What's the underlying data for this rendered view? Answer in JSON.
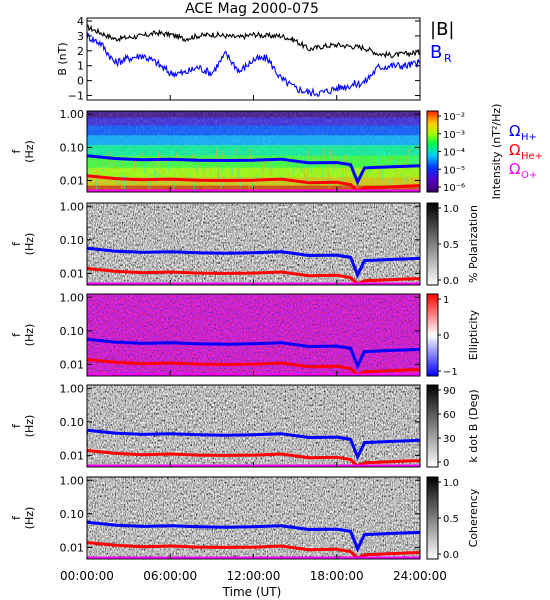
{
  "title": "ACE Mag 2000-075",
  "colors": {
    "total_field": "#000000",
    "radial_field": "#0000ff",
    "h_plus": "#0000ff",
    "he_plus": "#ff0000",
    "o_plus": "#ff00ff"
  },
  "chart_data": [
    {
      "type": "line",
      "panel": "magnetic-field",
      "ylabel": "B (nT)",
      "ylim": [
        -1.3,
        4.2
      ],
      "yticks": [
        "−1",
        "0",
        "1",
        "2",
        "3",
        "4"
      ],
      "x": [
        0,
        1,
        2,
        3,
        4,
        5,
        6,
        7,
        8,
        9,
        10,
        11,
        12,
        13,
        14,
        15,
        16,
        17,
        18,
        19,
        20,
        21,
        22,
        23,
        24
      ],
      "series": [
        {
          "name": "|B|",
          "values": [
            3.6,
            3.2,
            2.8,
            2.9,
            3.0,
            3.2,
            3.1,
            2.8,
            3.0,
            3.1,
            3.0,
            2.9,
            3.1,
            3.0,
            3.0,
            2.7,
            2.1,
            2.3,
            2.4,
            2.3,
            2.2,
            1.8,
            1.7,
            1.8,
            1.9
          ]
        },
        {
          "name": "B",
          "label_subscript": "R",
          "values": [
            3.0,
            2.5,
            1.2,
            1.5,
            1.7,
            1.2,
            0.5,
            0.5,
            0.9,
            0.5,
            1.8,
            0.6,
            1.4,
            1.5,
            0.1,
            -0.5,
            -0.8,
            -0.8,
            -0.5,
            -0.3,
            -0.1,
            0.9,
            1.0,
            1.0,
            1.2
          ]
        }
      ]
    },
    {
      "type": "heatmap",
      "panel": "intensity",
      "ylabel": "f (Hz)",
      "yscale": "log",
      "yticks": [
        "1.00",
        "0.10",
        "0.01"
      ],
      "colorbar_label": "Intensity (nT²/Hz)",
      "colorbar_ticks": [
        "10⁻²",
        "10⁻³",
        "10⁻⁴",
        "10⁻⁵",
        "10⁻⁶"
      ],
      "colorscale": "rainbow",
      "gyrofrequency_labels": [
        "ΩH+",
        "ΩHe+",
        "ΩO+"
      ]
    },
    {
      "type": "heatmap",
      "panel": "polarization",
      "ylabel": "f (Hz)",
      "yscale": "log",
      "yticks": [
        "1.00",
        "0.10",
        "0.01"
      ],
      "colorbar_label": "% Polarization",
      "colorbar_ticks": [
        "1.0",
        "0.5",
        "0.0"
      ],
      "colorscale": "grayscale"
    },
    {
      "type": "heatmap",
      "panel": "ellipticity",
      "ylabel": "f (Hz)",
      "yscale": "log",
      "yticks": [
        "1.00",
        "0.10",
        "0.01"
      ],
      "colorbar_label": "Ellipticity",
      "colorbar_ticks": [
        "1",
        "0",
        "−1"
      ],
      "colorscale": "blue-white-red"
    },
    {
      "type": "heatmap",
      "panel": "k-dot-b",
      "ylabel": "f (Hz)",
      "yscale": "log",
      "yticks": [
        "1.00",
        "0.10",
        "0.01"
      ],
      "colorbar_label": "k dot B (Deg)",
      "colorbar_ticks": [
        "90",
        "60",
        "30",
        "0"
      ],
      "colorscale": "grayscale"
    },
    {
      "type": "heatmap",
      "panel": "coherency",
      "ylabel": "f (Hz)",
      "yscale": "log",
      "yticks": [
        "1.00",
        "0.10",
        "0.01"
      ],
      "colorbar_label": "Coherency",
      "colorbar_ticks": [
        "1.0",
        "0.5",
        "0.0"
      ],
      "colorscale": "grayscale",
      "xlabel": "Time (UT)",
      "xticks": [
        "00:00:00",
        "06:00:00",
        "12:00:00",
        "18:00:00",
        "24:00:00"
      ]
    }
  ],
  "gyrofrequency_lines": {
    "x_hours": [
      0,
      2,
      4,
      6,
      8,
      10,
      12,
      14,
      16,
      18,
      19,
      19.5,
      20,
      21,
      22,
      23,
      24
    ],
    "h_plus_hz": [
      0.056,
      0.046,
      0.042,
      0.044,
      0.041,
      0.04,
      0.041,
      0.044,
      0.034,
      0.035,
      0.03,
      0.009,
      0.024,
      0.025,
      0.026,
      0.027,
      0.028
    ],
    "he_plus_hz": [
      0.014,
      0.0115,
      0.0105,
      0.011,
      0.0102,
      0.01,
      0.0102,
      0.011,
      0.0085,
      0.0088,
      0.0075,
      0.0024,
      0.006,
      0.0062,
      0.0065,
      0.0068,
      0.007
    ],
    "o_plus_hz": [
      0.0035,
      0.0029,
      0.0026,
      0.0027,
      0.0025,
      0.0025,
      0.0026,
      0.0027,
      0.0021,
      0.0022,
      0.0019,
      0.0006,
      0.0015,
      0.0016,
      0.0016,
      0.0017,
      0.0018
    ]
  }
}
